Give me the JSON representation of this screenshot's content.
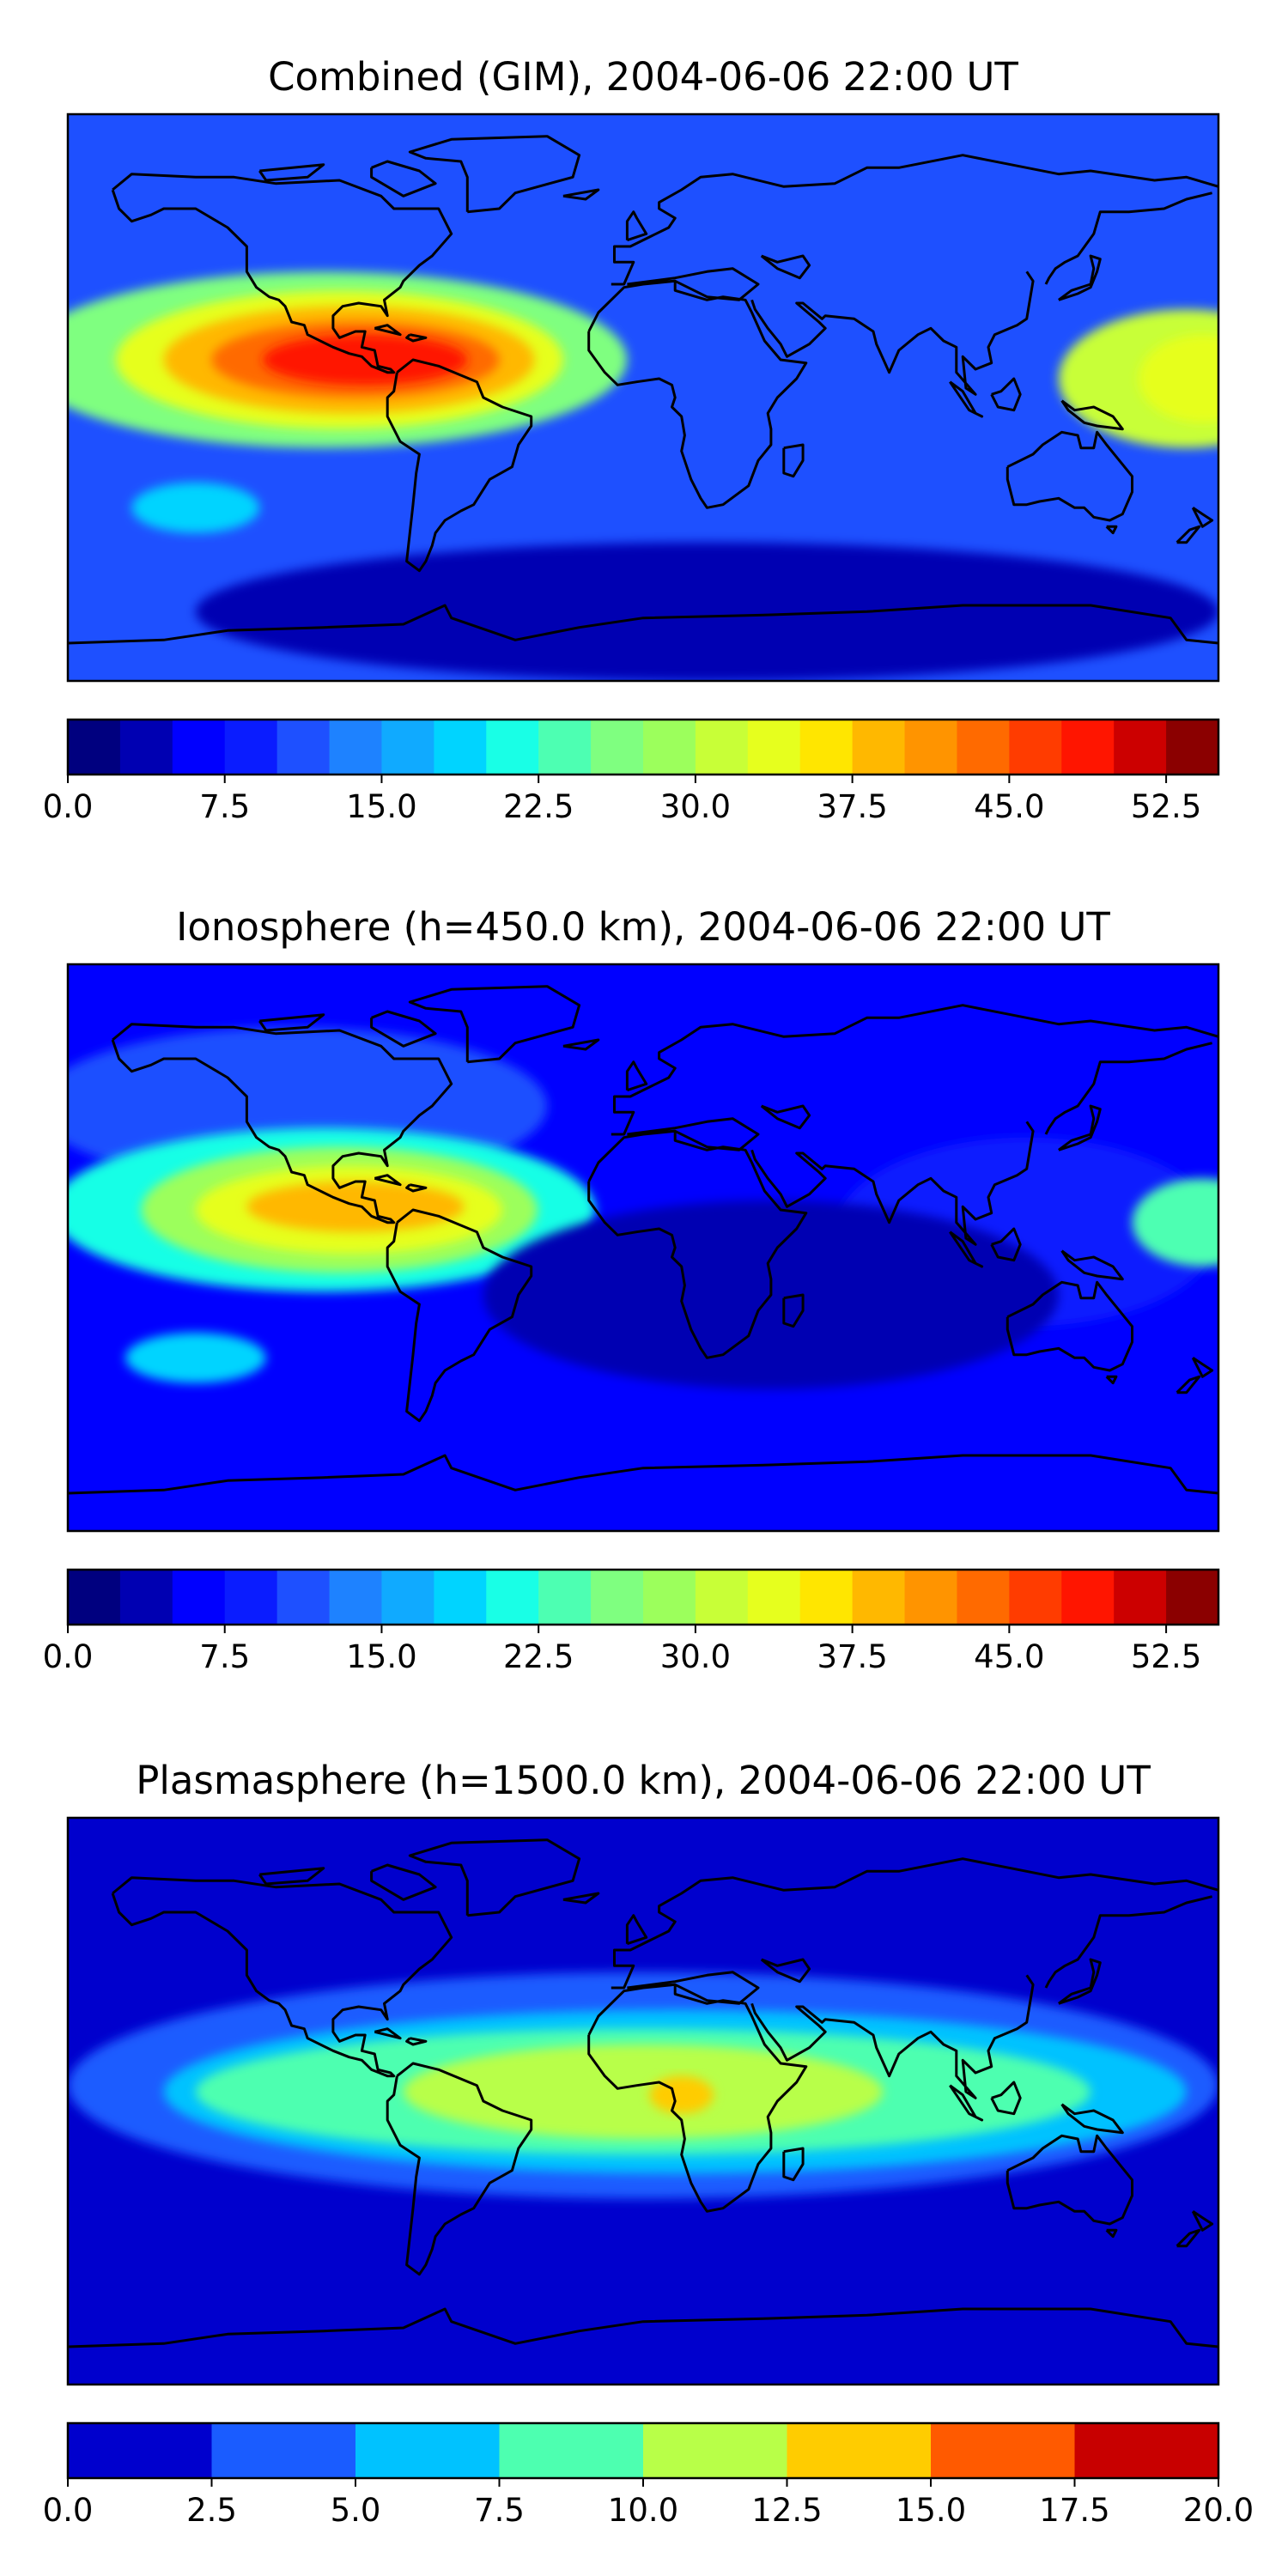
{
  "panels": [
    {
      "title": "Combined (GIM), 2004-06-06 22:00 UT",
      "colorbar": {
        "ticks": [
          "0.0",
          "7.5",
          "15.0",
          "22.5",
          "30.0",
          "37.5",
          "45.0",
          "52.5"
        ],
        "range": [
          0,
          55
        ],
        "levels": 22,
        "colors": [
          "#00007f",
          "#0000b2",
          "#0000ff",
          "#0a1cff",
          "#1e50ff",
          "#1e82ff",
          "#10aaff",
          "#00d4ff",
          "#19ffe6",
          "#4dffb2",
          "#7fff80",
          "#9cff5c",
          "#c8ff37",
          "#e6ff1e",
          "#ffe600",
          "#ffb800",
          "#ff9400",
          "#ff6a00",
          "#ff3c00",
          "#ff1500",
          "#cc0000",
          "#8b0000"
        ]
      },
      "map": {
        "background": "#1e50ff",
        "blobs": [
          {
            "lon": -100,
            "lat": 12,
            "rx": 95,
            "ry": 28,
            "level": 10
          },
          {
            "lon": -95,
            "lat": 12,
            "rx": 70,
            "ry": 22,
            "level": 13
          },
          {
            "lon": -92,
            "lat": 12,
            "rx": 58,
            "ry": 17,
            "level": 15
          },
          {
            "lon": -90,
            "lat": 12,
            "rx": 45,
            "ry": 12,
            "level": 17
          },
          {
            "lon": -87,
            "lat": 12,
            "rx": 32,
            "ry": 8,
            "level": 19
          },
          {
            "lon": 170,
            "lat": 6,
            "rx": 40,
            "ry": 22,
            "level": 12
          },
          {
            "lon": 175,
            "lat": 6,
            "rx": 20,
            "ry": 14,
            "level": 13
          },
          {
            "lon": -140,
            "lat": -35,
            "rx": 20,
            "ry": 8,
            "level": 7
          },
          {
            "lon": 20,
            "lat": -68,
            "rx": 160,
            "ry": 22,
            "level": 1
          }
        ]
      }
    },
    {
      "title": "Ionosphere  (h=450.0 km), 2004-06-06 22:00 UT",
      "colorbar": {
        "ticks": [
          "0.0",
          "7.5",
          "15.0",
          "22.5",
          "30.0",
          "37.5",
          "45.0",
          "52.5"
        ],
        "range": [
          0,
          55
        ],
        "levels": 22,
        "colors": [
          "#00007f",
          "#0000b2",
          "#0000ff",
          "#0a1cff",
          "#1e50ff",
          "#1e82ff",
          "#10aaff",
          "#00d4ff",
          "#19ffe6",
          "#4dffb2",
          "#7fff80",
          "#9cff5c",
          "#c8ff37",
          "#e6ff1e",
          "#ffe600",
          "#ffb800",
          "#ff9400",
          "#ff6a00",
          "#ff3c00",
          "#ff1500",
          "#cc0000",
          "#8b0000"
        ]
      },
      "map": {
        "background": "#0000ff",
        "blobs": [
          {
            "lon": -110,
            "lat": 45,
            "rx": 80,
            "ry": 25,
            "level": 4
          },
          {
            "lon": 120,
            "lat": 5,
            "rx": 60,
            "ry": 30,
            "level": 3
          },
          {
            "lon": -100,
            "lat": 12,
            "rx": 85,
            "ry": 26,
            "level": 8
          },
          {
            "lon": -95,
            "lat": 12,
            "rx": 62,
            "ry": 20,
            "level": 11
          },
          {
            "lon": -92,
            "lat": 12,
            "rx": 48,
            "ry": 14,
            "level": 13
          },
          {
            "lon": -90,
            "lat": 13,
            "rx": 34,
            "ry": 8,
            "level": 15
          },
          {
            "lon": -140,
            "lat": -35,
            "rx": 22,
            "ry": 8,
            "level": 7
          },
          {
            "lon": 175,
            "lat": 8,
            "rx": 22,
            "ry": 14,
            "level": 9
          },
          {
            "lon": 40,
            "lat": -15,
            "rx": 90,
            "ry": 30,
            "level": 1
          }
        ]
      }
    },
    {
      "title": "Plasmasphere (h=1500.0 km), 2004-06-06 22:00 UT",
      "colorbar": {
        "ticks": [
          "0.0",
          "2.5",
          "5.0",
          "7.5",
          "10.0",
          "12.5",
          "15.0",
          "17.5",
          "20.0"
        ],
        "range": [
          0,
          20
        ],
        "levels": 8,
        "colors": [
          "#0000cd",
          "#1a5cff",
          "#00c2ff",
          "#4dffb0",
          "#b8ff48",
          "#ffcc00",
          "#ff5a00",
          "#c80000"
        ]
      },
      "map": {
        "background": "#0000cd",
        "blobs": [
          {
            "lon": 0,
            "lat": 5,
            "rx": 180,
            "ry": 36,
            "level": 1
          },
          {
            "lon": 10,
            "lat": 3,
            "rx": 160,
            "ry": 26,
            "level": 2
          },
          {
            "lon": 0,
            "lat": 3,
            "rx": 140,
            "ry": 20,
            "level": 3
          },
          {
            "lon": 0,
            "lat": 3,
            "rx": 75,
            "ry": 15,
            "level": 4
          },
          {
            "lon": 12,
            "lat": 2,
            "rx": 10,
            "ry": 6,
            "level": 5
          }
        ]
      }
    }
  ]
}
